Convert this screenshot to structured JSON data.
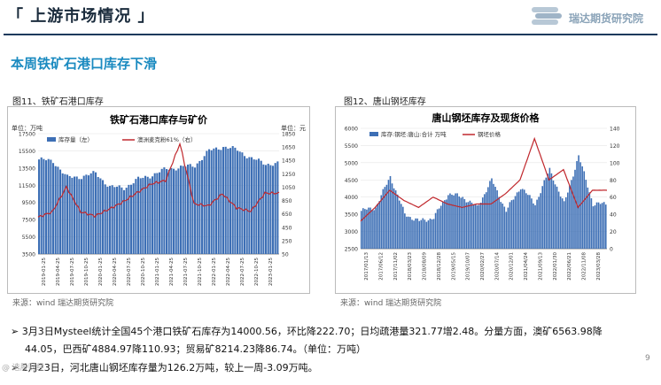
{
  "header": {
    "title": "「 上游市场情况 」",
    "logo_text": "瑞达期货研究院"
  },
  "subtitle": "本周铁矿石港口库存下滑",
  "figure1": {
    "caption": "图11、铁矿石港口库存",
    "source": "来源：wind   瑞达期货研究院",
    "chart_title": "铁矿石港口库存与矿价",
    "left_unit": "单位：万吨",
    "right_unit": "单位：元"
  },
  "figure2": {
    "caption": "图12、唐山钢坯库存",
    "source": "来源：wind   瑞达期货研究院",
    "chart_title": "唐山钢坯库存及现货价格"
  },
  "chart_data": [
    {
      "type": "bar",
      "title": "铁矿石港口库存与矿价",
      "y_left": {
        "label": "万吨",
        "lim": [
          3500,
          17500
        ],
        "ticks": [
          3500,
          5500,
          7500,
          9500,
          11500,
          13500,
          15500,
          17500
        ]
      },
      "y_right": {
        "label": "元",
        "lim": [
          50,
          1850
        ],
        "ticks": [
          50,
          250,
          450,
          650,
          850,
          1050,
          1250,
          1450,
          1650,
          1850
        ]
      },
      "categories": [
        "2019-01-25",
        "2019-04-25",
        "2019-07-25",
        "2019-10-25",
        "2020-01-25",
        "2020-04-25",
        "2020-07-25",
        "2020-10-25",
        "2021-01-25",
        "2021-04-25",
        "2021-07-25",
        "2021-10-25",
        "2022-01-25",
        "2022-04-25",
        "2022-07-25",
        "2022-10-25",
        "2023-01-25"
      ],
      "series": [
        {
          "name": "库存量（左）",
          "color": "#3d6fb5",
          "values": [
            14500,
            14300,
            12400,
            12500,
            12900,
            11300,
            11200,
            12200,
            12700,
            13400,
            13600,
            13800,
            15500,
            16000,
            15600,
            14600,
            14000
          ]
        },
        {
          "name": "澳洲麦克粉61%（右）",
          "color": "#c0282d",
          "values": [
            600,
            680,
            1050,
            680,
            620,
            720,
            830,
            970,
            1100,
            1150,
            1700,
            800,
            770,
            950,
            740,
            690,
            960
          ]
        }
      ]
    },
    {
      "type": "bar",
      "title": "唐山钢坯库存及现货价格",
      "y_left": {
        "label": "万吨",
        "lim": [
          2500,
          6000
        ],
        "ticks": [
          2500,
          3000,
          3500,
          4000,
          4500,
          5000,
          5500,
          6000
        ]
      },
      "y_right": {
        "label": "",
        "lim": [
          0,
          140
        ],
        "ticks": [
          0,
          20,
          40,
          60,
          80,
          100,
          120,
          140
        ]
      },
      "categories": [
        "2017/01/13",
        "2017/06/12",
        "2017/11/02",
        "2018/03/23",
        "2018/08/09",
        "2018/12/28",
        "2019/05/15",
        "2019/10/07",
        "2020/02/27",
        "2020/07/14",
        "2020/12/01",
        "2021/04/24",
        "2021/09/13",
        "2022/01/30",
        "2022/06/21",
        "2022/11/08",
        "2023/03/28"
      ],
      "series": [
        {
          "name": "库存:钢坯:唐山:合计 万吨",
          "color": "#3d6fb5",
          "values": [
            3600,
            3700,
            4600,
            3500,
            3300,
            3400,
            4100,
            4000,
            3700,
            4500,
            3600,
            4300,
            3800,
            4800,
            3800,
            5200,
            3800
          ]
        },
        {
          "name": "钢坯价格",
          "color": "#c0282d",
          "values": [
            3300,
            3700,
            4200,
            3900,
            3700,
            4000,
            3800,
            3700,
            3800,
            3800,
            4100,
            4500,
            5700,
            4500,
            4800,
            3700,
            4200
          ]
        }
      ]
    }
  ],
  "bullets": [
    "3月3日Mysteel统计全国45个港口铁矿石库存为14000.56，环比降222.70；日均疏港量321.77增2.48。分量方面，澳矿6563.98降",
    "44.05，巴西矿4884.97降110.93；贸易矿8214.23降86.74。（单位：万吨）",
    "2月23日，河北唐山钢坯库存量为126.2万吨，较上一周-3.09万吨。"
  ],
  "page_number": "9",
  "watermark": "@ 选股财经"
}
